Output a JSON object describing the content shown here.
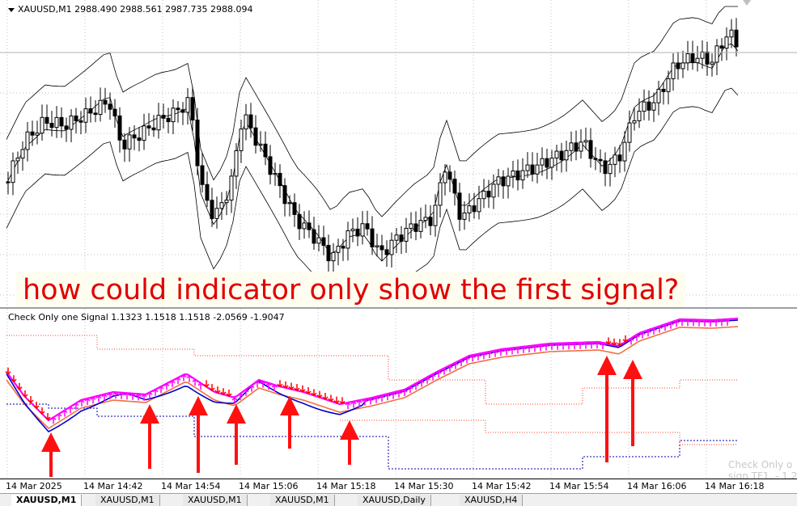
{
  "main_chart": {
    "symbol_line": "XAUUSD,M1  2988.490 2988.561 2987.735 2988.094",
    "annotation": "how could indicator only show the first signal?"
  },
  "sub_chart": {
    "info_line": "Check Only one Signal 1.1323 1.1518 1.1518 -2.0569 -1.9047"
  },
  "time_axis": {
    "labels": [
      "14 Mar 2025",
      "14 Mar 14:42",
      "14 Mar 14:54",
      "14 Mar 15:06",
      "14 Mar 15:18",
      "14 Mar 15:30",
      "14 Mar 15:42",
      "14 Mar 15:54",
      "14 Mar 16:06",
      "14 Mar 16:18"
    ]
  },
  "tabs": [
    "XAUUSD,M1",
    "XAUUSD,M1",
    "XAUUSD,M1",
    "XAUUSD,M1",
    "XAUUSD,Daily",
    "XAUUSD,H4"
  ],
  "ghost_text": [
    "Check Only o",
    "sign TF1. - 1.2"
  ],
  "colors": {
    "annotation_text": "#e00000",
    "signal_line": "#ff00ff",
    "blue_line": "#0000cc",
    "orange_line": "#f07040",
    "arrows": "#ff0000"
  },
  "icons": [
    "dropdown-arrow-icon",
    "up-arrow-icon",
    "down-arrow-icon"
  ]
}
